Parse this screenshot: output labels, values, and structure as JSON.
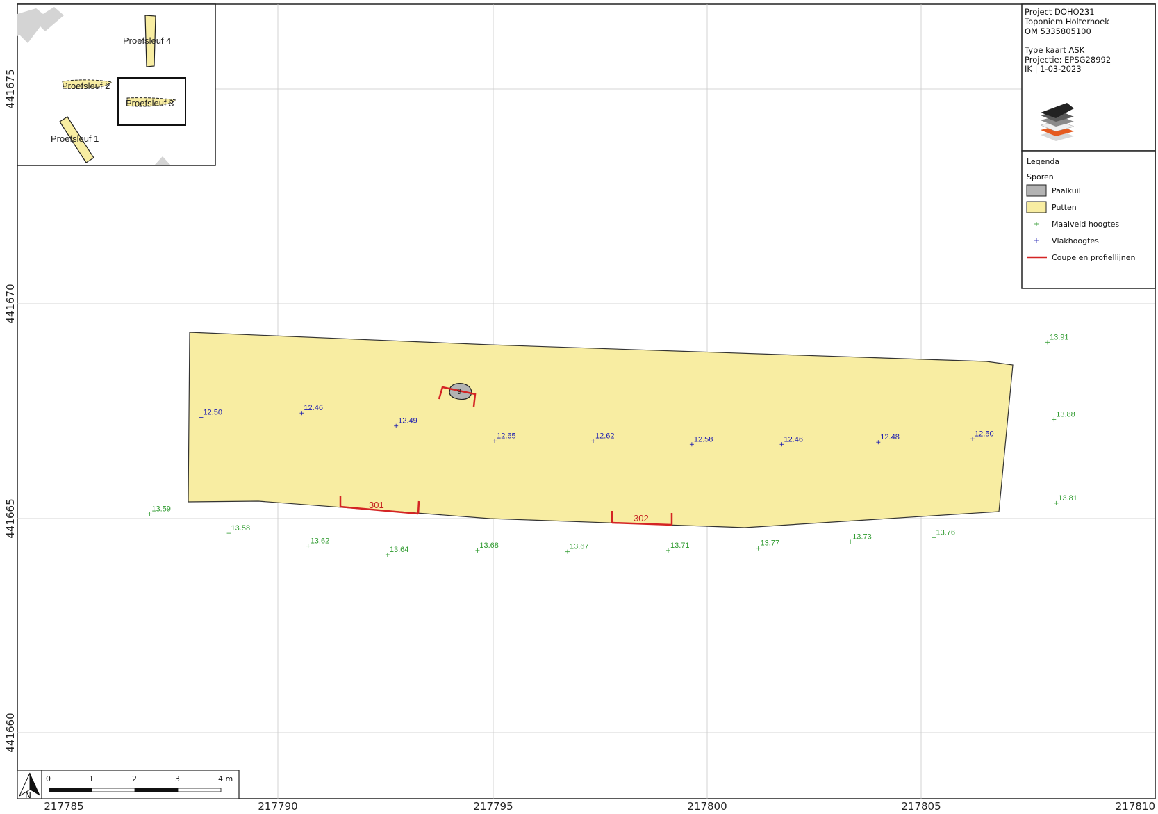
{
  "project_info": {
    "lines": [
      "Project DOHO231",
      "Toponiem Holterhoek",
      "OM 5335805100",
      "",
      "Type kaart ASK",
      "Projectie: EPSG28992",
      "IK | 1-03-2023"
    ]
  },
  "legend": {
    "title": "Legenda",
    "group": "Sporen",
    "items": [
      {
        "label": "Paalkuil",
        "symbol": "grey-fill",
        "color": "#b3b3b3"
      },
      {
        "label": "Putten",
        "symbol": "yellow-fill",
        "color": "#f8eda2"
      },
      {
        "label": "Maaiveld hoogtes",
        "symbol": "green-cross",
        "color": "#2e9a2e"
      },
      {
        "label": "Vlakhoogtes",
        "symbol": "blue-cross",
        "color": "#1a1ab0"
      },
      {
        "label": "Coupe en profiellijnen",
        "symbol": "red-line",
        "color": "#d42424"
      }
    ]
  },
  "axes": {
    "x_ticks": [
      "217785",
      "217790",
      "217795",
      "217800",
      "217805",
      "217810"
    ],
    "y_ticks": [
      "441675",
      "441670",
      "441665",
      "441660"
    ]
  },
  "feature": {
    "paalkuil_label": "9"
  },
  "profiles": [
    {
      "label": "301"
    },
    {
      "label": "302"
    }
  ],
  "vlakhoogtes": [
    {
      "label": "12.50",
      "x": 217788.2,
      "y": 441667.35
    },
    {
      "label": "12.46",
      "x": 217790.55,
      "y": 441667.45
    },
    {
      "label": "12.49",
      "x": 217792.75,
      "y": 441667.15
    },
    {
      "label": "12.65",
      "x": 217795.05,
      "y": 441666.8
    },
    {
      "label": "12.62",
      "x": 217797.35,
      "y": 441666.8
    },
    {
      "label": "12.58",
      "x": 217799.65,
      "y": 441666.72
    },
    {
      "label": "12.46",
      "x": 217801.75,
      "y": 441666.72
    },
    {
      "label": "12.48",
      "x": 217804.0,
      "y": 441666.77
    },
    {
      "label": "12.50",
      "x": 217806.2,
      "y": 441666.85
    }
  ],
  "maaiveldhoogtes": [
    {
      "label": "13.91",
      "x": 217807.95,
      "y": 441669.1
    },
    {
      "label": "13.88",
      "x": 217808.1,
      "y": 441667.3
    },
    {
      "label": "13.81",
      "x": 217808.15,
      "y": 441665.35
    },
    {
      "label": "13.59",
      "x": 217787.0,
      "y": 441665.1
    },
    {
      "label": "13.58",
      "x": 217788.85,
      "y": 441664.65
    },
    {
      "label": "13.62",
      "x": 217790.7,
      "y": 441664.35
    },
    {
      "label": "13.64",
      "x": 217792.55,
      "y": 441664.15
    },
    {
      "label": "13.68",
      "x": 217794.65,
      "y": 441664.25
    },
    {
      "label": "13.67",
      "x": 217796.75,
      "y": 441664.22
    },
    {
      "label": "13.71",
      "x": 217799.1,
      "y": 441664.25
    },
    {
      "label": "13.77",
      "x": 217801.2,
      "y": 441664.3
    },
    {
      "label": "13.73",
      "x": 217803.35,
      "y": 441664.45
    },
    {
      "label": "13.76",
      "x": 217805.3,
      "y": 441664.55
    }
  ],
  "inset": {
    "trenches": [
      "Proefsleuf 1",
      "Proefsleuf 2",
      "Proefsleuf 3",
      "Proefsleuf 4"
    ]
  },
  "scale_bar": {
    "ticks": [
      "0",
      "1",
      "2",
      "3",
      "4 m"
    ],
    "north": "N"
  },
  "colors": {
    "trench_fill": "#f8eda2",
    "paalkuil_fill": "#b3b3b3",
    "profile_line": "#d42424",
    "maaiveld": "#2e9a2e",
    "vlak": "#1a1ab0"
  }
}
